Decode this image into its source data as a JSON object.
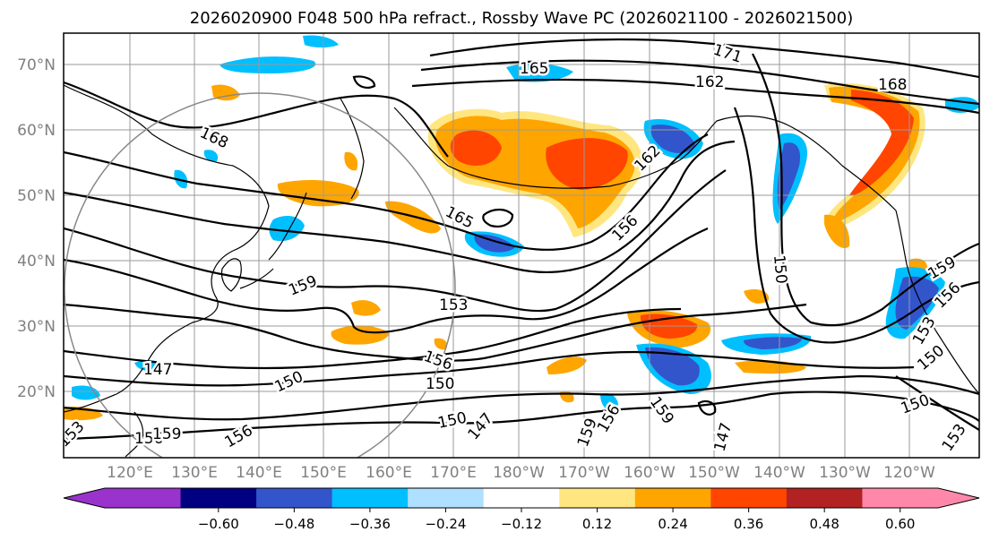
{
  "title": "2026020900 F048 500 hPa refract., Rossby Wave PC (2026021100 - 2026021500)",
  "lat_labels": [
    "70°N",
    "60°N",
    "50°N",
    "40°N",
    "30°N",
    "20°N"
  ],
  "lon_labels": [
    "120°E",
    "130°E",
    "140°E",
    "150°E",
    "160°E",
    "170°E",
    "180°W",
    "170°W",
    "160°W",
    "150°W",
    "140°W",
    "130°W",
    "120°W"
  ],
  "contour_labels": [
    "171",
    "165",
    "162",
    "168",
    "168",
    "165",
    "162",
    "156",
    "159",
    "153",
    "147",
    "150",
    "156",
    "150",
    "150",
    "147",
    "159",
    "156",
    "159",
    "156",
    "147",
    "150",
    "153",
    "159",
    "156",
    "153",
    "150",
    "150",
    "153",
    "156",
    "159"
  ],
  "colorbar": {
    "tick_labels": [
      "−0.60",
      "−0.48",
      "−0.36",
      "−0.24",
      "−0.12",
      "0.12",
      "0.24",
      "0.36",
      "0.48",
      "0.60"
    ],
    "colors": [
      "#9933cc",
      "#000080",
      "#3355cc",
      "#00bfff",
      "#b0e0ff",
      "#ffffff",
      "#ffe680",
      "#ffa500",
      "#ff4500",
      "#b22222",
      "#ff88aa",
      "#ff88aa"
    ]
  },
  "anomaly_colors": {
    "neg_light": "#b0e0ff",
    "neg_mid": "#00bfff",
    "neg_dark": "#3355cc",
    "pos_light": "#ffe680",
    "pos_mid": "#ffa500",
    "pos_dark": "#ff4500"
  }
}
